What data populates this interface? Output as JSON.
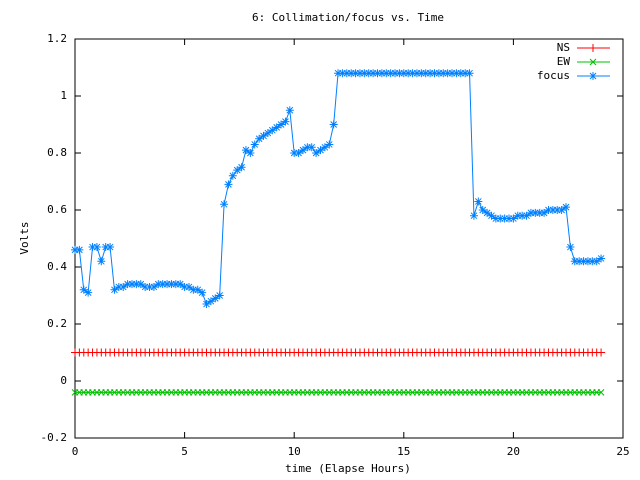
{
  "chart_data": {
    "type": "line",
    "title": "6: Collimation/focus vs. Time",
    "x_label": "time (Elapse Hours)",
    "y_label": "Volts",
    "xlim": [
      0,
      25
    ],
    "xticks": [
      0,
      5,
      10,
      15,
      20,
      25
    ],
    "ylim": [
      -0.2,
      1.2
    ],
    "yticks": [
      -0.2,
      0,
      0.2,
      0.4,
      0.6,
      0.8,
      1,
      1.2
    ],
    "legend": "top-right",
    "x": [
      0,
      0.2,
      0.4,
      0.6,
      0.8,
      1,
      1.2,
      1.4,
      1.6,
      1.8,
      2,
      2.2,
      2.4,
      2.6,
      2.8,
      3,
      3.2,
      3.4,
      3.6,
      3.8,
      4,
      4.2,
      4.4,
      4.6,
      4.8,
      5,
      5.2,
      5.4,
      5.6,
      5.8,
      6,
      6.2,
      6.4,
      6.6,
      6.8,
      7,
      7.2,
      7.4,
      7.6,
      7.8,
      8,
      8.2,
      8.4,
      8.6,
      8.8,
      9,
      9.2,
      9.4,
      9.6,
      9.8,
      10,
      10.2,
      10.4,
      10.6,
      10.8,
      11,
      11.2,
      11.4,
      11.6,
      11.8,
      12,
      12.2,
      12.4,
      12.6,
      12.8,
      13,
      13.2,
      13.4,
      13.6,
      13.8,
      14,
      14.2,
      14.4,
      14.6,
      14.8,
      15,
      15.2,
      15.4,
      15.6,
      15.8,
      16,
      16.2,
      16.4,
      16.6,
      16.8,
      17,
      17.2,
      17.4,
      17.6,
      17.8,
      18,
      18.2,
      18.4,
      18.6,
      18.8,
      19,
      19.2,
      19.4,
      19.6,
      19.8,
      20,
      20.2,
      20.4,
      20.6,
      20.8,
      21,
      21.2,
      21.4,
      21.6,
      21.8,
      22,
      22.2,
      22.4,
      22.6,
      22.8,
      23,
      23.2,
      23.4,
      23.6,
      23.8,
      24
    ],
    "series": [
      {
        "name": "NS",
        "color": "#ff0000",
        "marker": "plus",
        "values": [
          0.1,
          0.1,
          0.1,
          0.1,
          0.1,
          0.1,
          0.1,
          0.1,
          0.1,
          0.1,
          0.1,
          0.1,
          0.1,
          0.1,
          0.1,
          0.1,
          0.1,
          0.1,
          0.1,
          0.1,
          0.1,
          0.1,
          0.1,
          0.1,
          0.1,
          0.1,
          0.1,
          0.1,
          0.1,
          0.1,
          0.1,
          0.1,
          0.1,
          0.1,
          0.1,
          0.1,
          0.1,
          0.1,
          0.1,
          0.1,
          0.1,
          0.1,
          0.1,
          0.1,
          0.1,
          0.1,
          0.1,
          0.1,
          0.1,
          0.1,
          0.1,
          0.1,
          0.1,
          0.1,
          0.1,
          0.1,
          0.1,
          0.1,
          0.1,
          0.1,
          0.1,
          0.1,
          0.1,
          0.1,
          0.1,
          0.1,
          0.1,
          0.1,
          0.1,
          0.1,
          0.1,
          0.1,
          0.1,
          0.1,
          0.1,
          0.1,
          0.1,
          0.1,
          0.1,
          0.1,
          0.1,
          0.1,
          0.1,
          0.1,
          0.1,
          0.1,
          0.1,
          0.1,
          0.1,
          0.1,
          0.1,
          0.1,
          0.1,
          0.1,
          0.1,
          0.1,
          0.1,
          0.1,
          0.1,
          0.1,
          0.1,
          0.1,
          0.1,
          0.1,
          0.1,
          0.1,
          0.1,
          0.1,
          0.1,
          0.1,
          0.1,
          0.1,
          0.1,
          0.1,
          0.1,
          0.1,
          0.1,
          0.1,
          0.1,
          0.1,
          0.1
        ]
      },
      {
        "name": "EW",
        "color": "#00c000",
        "marker": "cross",
        "values": [
          -0.04,
          -0.04,
          -0.04,
          -0.04,
          -0.04,
          -0.04,
          -0.04,
          -0.04,
          -0.04,
          -0.04,
          -0.04,
          -0.04,
          -0.04,
          -0.04,
          -0.04,
          -0.04,
          -0.04,
          -0.04,
          -0.04,
          -0.04,
          -0.04,
          -0.04,
          -0.04,
          -0.04,
          -0.04,
          -0.04,
          -0.04,
          -0.04,
          -0.04,
          -0.04,
          -0.04,
          -0.04,
          -0.04,
          -0.04,
          -0.04,
          -0.04,
          -0.04,
          -0.04,
          -0.04,
          -0.04,
          -0.04,
          -0.04,
          -0.04,
          -0.04,
          -0.04,
          -0.04,
          -0.04,
          -0.04,
          -0.04,
          -0.04,
          -0.04,
          -0.04,
          -0.04,
          -0.04,
          -0.04,
          -0.04,
          -0.04,
          -0.04,
          -0.04,
          -0.04,
          -0.04,
          -0.04,
          -0.04,
          -0.04,
          -0.04,
          -0.04,
          -0.04,
          -0.04,
          -0.04,
          -0.04,
          -0.04,
          -0.04,
          -0.04,
          -0.04,
          -0.04,
          -0.04,
          -0.04,
          -0.04,
          -0.04,
          -0.04,
          -0.04,
          -0.04,
          -0.04,
          -0.04,
          -0.04,
          -0.04,
          -0.04,
          -0.04,
          -0.04,
          -0.04,
          -0.04,
          -0.04,
          -0.04,
          -0.04,
          -0.04,
          -0.04,
          -0.04,
          -0.04,
          -0.04,
          -0.04,
          -0.04,
          -0.04,
          -0.04,
          -0.04,
          -0.04,
          -0.04,
          -0.04,
          -0.04,
          -0.04,
          -0.04,
          -0.04,
          -0.04,
          -0.04,
          -0.04,
          -0.04,
          -0.04,
          -0.04,
          -0.04,
          -0.04,
          -0.04,
          -0.04
        ]
      },
      {
        "name": "focus",
        "color": "#0080ff",
        "marker": "star",
        "values": [
          0.46,
          0.46,
          0.32,
          0.31,
          0.47,
          0.47,
          0.42,
          0.47,
          0.47,
          0.32,
          0.33,
          0.33,
          0.34,
          0.34,
          0.34,
          0.34,
          0.33,
          0.33,
          0.33,
          0.34,
          0.34,
          0.34,
          0.34,
          0.34,
          0.34,
          0.33,
          0.33,
          0.32,
          0.32,
          0.31,
          0.27,
          0.28,
          0.29,
          0.3,
          0.62,
          0.69,
          0.72,
          0.74,
          0.75,
          0.81,
          0.8,
          0.83,
          0.85,
          0.86,
          0.87,
          0.88,
          0.89,
          0.9,
          0.91,
          0.95,
          0.8,
          0.8,
          0.81,
          0.82,
          0.82,
          0.8,
          0.81,
          0.82,
          0.83,
          0.9,
          1.08,
          1.08,
          1.08,
          1.08,
          1.08,
          1.08,
          1.08,
          1.08,
          1.08,
          1.08,
          1.08,
          1.08,
          1.08,
          1.08,
          1.08,
          1.08,
          1.08,
          1.08,
          1.08,
          1.08,
          1.08,
          1.08,
          1.08,
          1.08,
          1.08,
          1.08,
          1.08,
          1.08,
          1.08,
          1.08,
          1.08,
          0.58,
          0.63,
          0.6,
          0.59,
          0.58,
          0.57,
          0.57,
          0.57,
          0.57,
          0.57,
          0.58,
          0.58,
          0.58,
          0.59,
          0.59,
          0.59,
          0.59,
          0.6,
          0.6,
          0.6,
          0.6,
          0.61,
          0.47,
          0.42,
          0.42,
          0.42,
          0.42,
          0.42,
          0.42,
          0.43
        ]
      }
    ]
  }
}
